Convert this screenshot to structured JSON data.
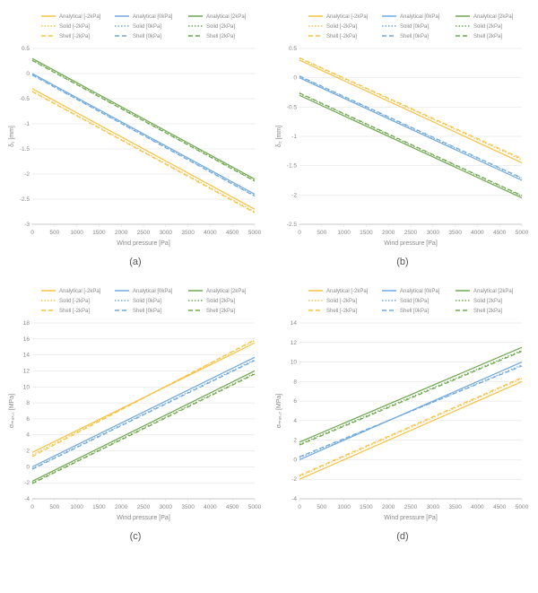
{
  "figure": {
    "background_color": "#ffffff",
    "grid_color": "#dcdcdc",
    "text_color": "#888888",
    "font_family": "Arial",
    "tick_fontsize": 6.5,
    "axis_label_fontsize": 7,
    "legend_fontsize": 6,
    "x_label": "Wind pressure [Pa]",
    "x_min": 0,
    "x_max": 5000,
    "x_tick_step": 500,
    "series_common": {
      "colors": {
        "neg2kPa": "#f5c243",
        "0kPa": "#6fa8dc",
        "2kPa": "#6ea84f"
      },
      "styles": {
        "Analytical": "solid",
        "Solid": "dotted",
        "Shell": "dashed"
      },
      "line_width": 1.2,
      "legend_order": [
        "Analytical [-2kPa]",
        "Solid [-2kPa]",
        "Shell [-2kPa]",
        "Analytical [0kPa]",
        "Solid [0kPa]",
        "Shell [0kPa]",
        "Analytical [2kPa]",
        "Solid [2kPa]",
        "Shell [2kPa]"
      ]
    },
    "panels": [
      {
        "id": "a",
        "caption": "(a)",
        "y_label": "δ₁ [mm]",
        "y_min": -3,
        "y_max": 0.5,
        "y_tick_step": 0.5,
        "series": [
          {
            "x": [
              0,
              5000
            ],
            "y": [
              -0.3,
              -2.7
            ],
            "color": "#f5c243",
            "style": "solid",
            "label": "Analytical [-2kPa]"
          },
          {
            "x": [
              0,
              5000
            ],
            "y": [
              -0.35,
              -2.75
            ],
            "color": "#f5c243",
            "style": "dotted",
            "label": "Solid [-2kPa]"
          },
          {
            "x": [
              0,
              5000
            ],
            "y": [
              -0.36,
              -2.77
            ],
            "color": "#f5c243",
            "style": "dashed",
            "label": "Shell [-2kPa]"
          },
          {
            "x": [
              0,
              5000
            ],
            "y": [
              0.0,
              -2.4
            ],
            "color": "#6fa8dc",
            "style": "solid",
            "label": "Analytical [0kPa]"
          },
          {
            "x": [
              0,
              5000
            ],
            "y": [
              -0.02,
              -2.43
            ],
            "color": "#6fa8dc",
            "style": "dotted",
            "label": "Solid [0kPa]"
          },
          {
            "x": [
              0,
              5000
            ],
            "y": [
              -0.03,
              -2.44
            ],
            "color": "#6fa8dc",
            "style": "dashed",
            "label": "Shell [0kPa]"
          },
          {
            "x": [
              0,
              5000
            ],
            "y": [
              0.3,
              -2.1
            ],
            "color": "#6ea84f",
            "style": "solid",
            "label": "Analytical [2kPa]"
          },
          {
            "x": [
              0,
              5000
            ],
            "y": [
              0.27,
              -2.13
            ],
            "color": "#6ea84f",
            "style": "dotted",
            "label": "Solid [2kPa]"
          },
          {
            "x": [
              0,
              5000
            ],
            "y": [
              0.26,
              -2.14
            ],
            "color": "#6ea84f",
            "style": "dashed",
            "label": "Shell [2kPa]"
          }
        ]
      },
      {
        "id": "b",
        "caption": "(b)",
        "y_label": "δ₂ [mm]",
        "y_min": -2.5,
        "y_max": 0.5,
        "y_tick_step": 0.5,
        "series": [
          {
            "x": [
              0,
              5000
            ],
            "y": [
              0.3,
              -1.45
            ],
            "color": "#f5c243",
            "style": "solid",
            "label": "Analytical [-2kPa]"
          },
          {
            "x": [
              0,
              5000
            ],
            "y": [
              0.33,
              -1.4
            ],
            "color": "#f5c243",
            "style": "dotted",
            "label": "Solid [-2kPa]"
          },
          {
            "x": [
              0,
              5000
            ],
            "y": [
              0.34,
              -1.38
            ],
            "color": "#f5c243",
            "style": "dashed",
            "label": "Shell [-2kPa]"
          },
          {
            "x": [
              0,
              5000
            ],
            "y": [
              0.0,
              -1.75
            ],
            "color": "#6fa8dc",
            "style": "solid",
            "label": "Analytical [0kPa]"
          },
          {
            "x": [
              0,
              5000
            ],
            "y": [
              0.02,
              -1.72
            ],
            "color": "#6fa8dc",
            "style": "dotted",
            "label": "Solid [0kPa]"
          },
          {
            "x": [
              0,
              5000
            ],
            "y": [
              0.03,
              -1.71
            ],
            "color": "#6fa8dc",
            "style": "dashed",
            "label": "Shell [0kPa]"
          },
          {
            "x": [
              0,
              5000
            ],
            "y": [
              -0.3,
              -2.05
            ],
            "color": "#6ea84f",
            "style": "solid",
            "label": "Analytical [2kPa]"
          },
          {
            "x": [
              0,
              5000
            ],
            "y": [
              -0.27,
              -2.02
            ],
            "color": "#6ea84f",
            "style": "dotted",
            "label": "Solid [2kPa]"
          },
          {
            "x": [
              0,
              5000
            ],
            "y": [
              -0.26,
              -2.01
            ],
            "color": "#6ea84f",
            "style": "dashed",
            "label": "Shell [2kPa]"
          }
        ]
      },
      {
        "id": "c",
        "caption": "(c)",
        "y_label": "σₘₐₓ,₁ [MPa]",
        "y_min": -4,
        "y_max": 18,
        "y_tick_step": 2,
        "series": [
          {
            "x": [
              0,
              5000
            ],
            "y": [
              1.8,
              15.5
            ],
            "color": "#f5c243",
            "style": "solid",
            "label": "Analytical [-2kPa]"
          },
          {
            "x": [
              0,
              5000
            ],
            "y": [
              1.5,
              15.8
            ],
            "color": "#f5c243",
            "style": "dotted",
            "label": "Solid [-2kPa]"
          },
          {
            "x": [
              0,
              5000
            ],
            "y": [
              1.3,
              15.9
            ],
            "color": "#f5c243",
            "style": "dashed",
            "label": "Shell [-2kPa]"
          },
          {
            "x": [
              0,
              5000
            ],
            "y": [
              0.0,
              13.7
            ],
            "color": "#6fa8dc",
            "style": "solid",
            "label": "Analytical [0kPa]"
          },
          {
            "x": [
              0,
              5000
            ],
            "y": [
              -0.2,
              13.4
            ],
            "color": "#6fa8dc",
            "style": "dotted",
            "label": "Solid [0kPa]"
          },
          {
            "x": [
              0,
              5000
            ],
            "y": [
              -0.3,
              13.3
            ],
            "color": "#6fa8dc",
            "style": "dashed",
            "label": "Shell [0kPa]"
          },
          {
            "x": [
              0,
              5000
            ],
            "y": [
              -1.8,
              12.0
            ],
            "color": "#6ea84f",
            "style": "solid",
            "label": "Analytical [2kPa]"
          },
          {
            "x": [
              0,
              5000
            ],
            "y": [
              -2.0,
              11.7
            ],
            "color": "#6ea84f",
            "style": "dotted",
            "label": "Solid [2kPa]"
          },
          {
            "x": [
              0,
              5000
            ],
            "y": [
              -2.1,
              11.6
            ],
            "color": "#6ea84f",
            "style": "dashed",
            "label": "Shell [2kPa]"
          }
        ]
      },
      {
        "id": "d",
        "caption": "(d)",
        "y_label": "σₘₐₓ,₂ [MPa]",
        "y_min": -4,
        "y_max": 14,
        "y_tick_step": 2,
        "series": [
          {
            "x": [
              0,
              5000
            ],
            "y": [
              -2.0,
              8.0
            ],
            "color": "#f5c243",
            "style": "solid",
            "label": "Analytical [-2kPa]"
          },
          {
            "x": [
              0,
              5000
            ],
            "y": [
              -1.7,
              8.3
            ],
            "color": "#f5c243",
            "style": "dotted",
            "label": "Solid [-2kPa]"
          },
          {
            "x": [
              0,
              5000
            ],
            "y": [
              -1.6,
              8.4
            ],
            "color": "#f5c243",
            "style": "dashed",
            "label": "Shell [-2kPa]"
          },
          {
            "x": [
              0,
              5000
            ],
            "y": [
              0.0,
              10.0
            ],
            "color": "#6fa8dc",
            "style": "solid",
            "label": "Analytical [0kPa]"
          },
          {
            "x": [
              0,
              5000
            ],
            "y": [
              0.2,
              9.7
            ],
            "color": "#6fa8dc",
            "style": "dotted",
            "label": "Solid [0kPa]"
          },
          {
            "x": [
              0,
              5000
            ],
            "y": [
              0.3,
              9.6
            ],
            "color": "#6fa8dc",
            "style": "dashed",
            "label": "Shell [0kPa]"
          },
          {
            "x": [
              0,
              5000
            ],
            "y": [
              1.8,
              11.5
            ],
            "color": "#6ea84f",
            "style": "solid",
            "label": "Analytical [2kPa]"
          },
          {
            "x": [
              0,
              5000
            ],
            "y": [
              1.6,
              11.2
            ],
            "color": "#6ea84f",
            "style": "dotted",
            "label": "Solid [2kPa]"
          },
          {
            "x": [
              0,
              5000
            ],
            "y": [
              1.5,
              11.1
            ],
            "color": "#6ea84f",
            "style": "dashed",
            "label": "Shell [2kPa]"
          }
        ]
      }
    ]
  }
}
